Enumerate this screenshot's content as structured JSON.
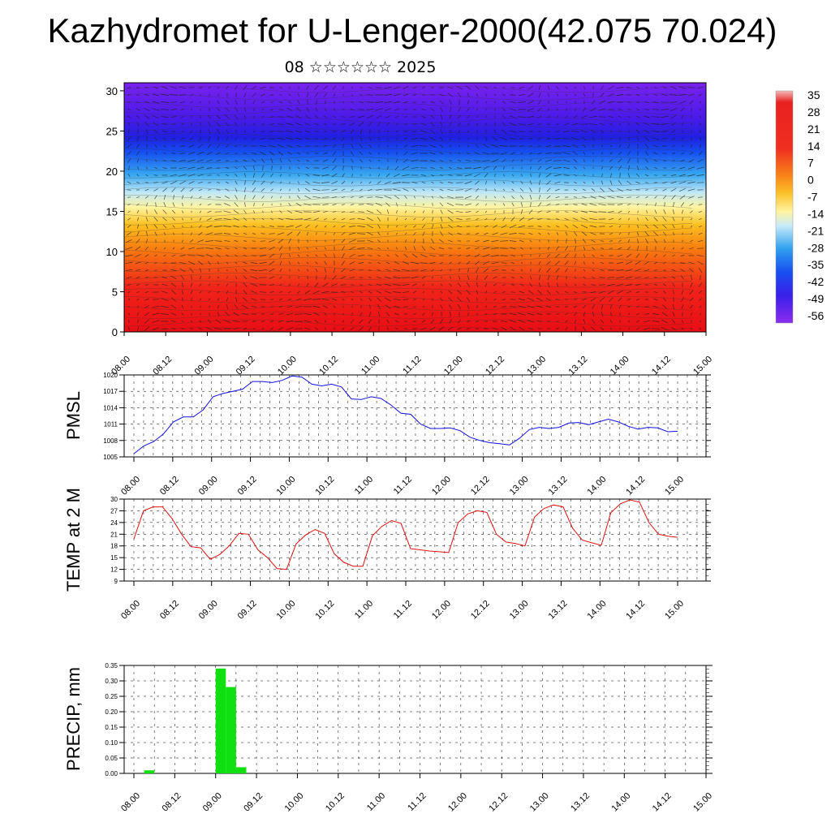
{
  "title": "Kazhydromet for U-Lenger-2000(42.075 70.024)",
  "subtitle": "08 ☆☆☆☆☆☆ 2025",
  "chart_data": [
    {
      "type": "heatmap",
      "title": "",
      "x_ticks": [
        "08.00",
        "08.12",
        "09.00",
        "09.12",
        "10.00",
        "10.12",
        "11.00",
        "11.12",
        "12.00",
        "12.12",
        "13.00",
        "13.12",
        "14.00",
        "14.12",
        "15.00"
      ],
      "y_ticks": [
        0,
        5,
        10,
        15,
        20,
        25,
        30
      ],
      "ylim": [
        0,
        31
      ],
      "colorbar_labels": [
        "35",
        "28",
        "21",
        "14",
        "7",
        "0",
        "-7",
        "-14",
        "-21",
        "-28",
        "-35",
        "-42",
        "-49",
        "-56"
      ],
      "colors": {
        "warm": "#e8101a",
        "neutral": "#fff0a0",
        "cold": "#5a1af0"
      },
      "overlay": "wind vectors"
    },
    {
      "type": "line",
      "ylabel": "PMSL",
      "ylim": [
        1005,
        1020
      ],
      "y_ticks": [
        1005,
        1008,
        1011,
        1014,
        1017,
        1020
      ],
      "x_ticks": [
        "08.00",
        "08.12",
        "09.00",
        "09.12",
        "10.00",
        "10.12",
        "11.00",
        "11.12",
        "12.00",
        "12.12",
        "13.00",
        "13.12",
        "14.00",
        "14.12",
        "15.00"
      ],
      "color": "#1010e0",
      "values": [
        1005.6,
        1007.0,
        1007.8,
        1009.2,
        1011.4,
        1012.3,
        1012.3,
        1013.6,
        1016.0,
        1016.6,
        1017.0,
        1017.4,
        1018.8,
        1018.8,
        1018.6,
        1019.0,
        1019.8,
        1019.6,
        1018.3,
        1018.0,
        1018.3,
        1017.8,
        1015.6,
        1015.5,
        1016.0,
        1015.7,
        1014.5,
        1013.0,
        1012.8,
        1011.0,
        1010.2,
        1010.2,
        1010.3,
        1009.8,
        1008.6,
        1008.0,
        1007.6,
        1007.4,
        1007.2,
        1008.4,
        1010.0,
        1010.4,
        1010.2,
        1010.4,
        1011.2,
        1011.3,
        1010.9,
        1011.4,
        1011.9,
        1011.4,
        1010.6,
        1010.1,
        1010.4,
        1010.3,
        1009.6,
        1009.7
      ]
    },
    {
      "type": "line",
      "ylabel": "TEMP at 2 M",
      "ylim": [
        9,
        30
      ],
      "y_ticks": [
        9,
        12,
        15,
        18,
        21,
        24,
        27,
        30
      ],
      "x_ticks": [
        "08.00",
        "08.12",
        "09.00",
        "09.12",
        "10.00",
        "10.12",
        "11.00",
        "11.12",
        "12.00",
        "12.12",
        "13.00",
        "13.12",
        "14.00",
        "14.12",
        "15.00"
      ],
      "color": "#e01010",
      "values": [
        19.8,
        27.0,
        28.0,
        28.0,
        25.0,
        21.0,
        17.8,
        17.5,
        14.6,
        15.8,
        18.0,
        21.2,
        21.0,
        17.0,
        15.0,
        12.2,
        12.0,
        18.5,
        20.8,
        22.2,
        21.2,
        16.0,
        13.8,
        12.8,
        12.8,
        20.6,
        23.0,
        24.5,
        23.8,
        17.3,
        17.0,
        16.7,
        16.5,
        16.3,
        24.0,
        26.2,
        27.0,
        26.6,
        21.0,
        19.0,
        18.6,
        18.0,
        25.4,
        27.6,
        28.5,
        28.0,
        22.5,
        19.5,
        18.8,
        18.2,
        26.5,
        28.8,
        29.8,
        29.2,
        24.0,
        21.0,
        20.5,
        20.2
      ]
    },
    {
      "type": "bar",
      "ylabel": "PRECIP, mm",
      "ylim": [
        0,
        0.35
      ],
      "y_ticks": [
        "0.00",
        "0.05",
        "0.10",
        "0.15",
        "0.20",
        "0.25",
        "0.30",
        "0.35"
      ],
      "x_ticks": [
        "08.00",
        "08.12",
        "09.00",
        "09.12",
        "10.00",
        "10.12",
        "11.00",
        "11.12",
        "12.00",
        "12.12",
        "13.00",
        "13.12",
        "14.00",
        "14.12",
        "15.00"
      ],
      "color": "#10e010",
      "bars": [
        {
          "time_h": 3,
          "value": 0.01
        },
        {
          "time_h": 24,
          "value": 0.34
        },
        {
          "time_h": 27,
          "value": 0.28
        },
        {
          "time_h": 30,
          "value": 0.02
        }
      ]
    }
  ]
}
